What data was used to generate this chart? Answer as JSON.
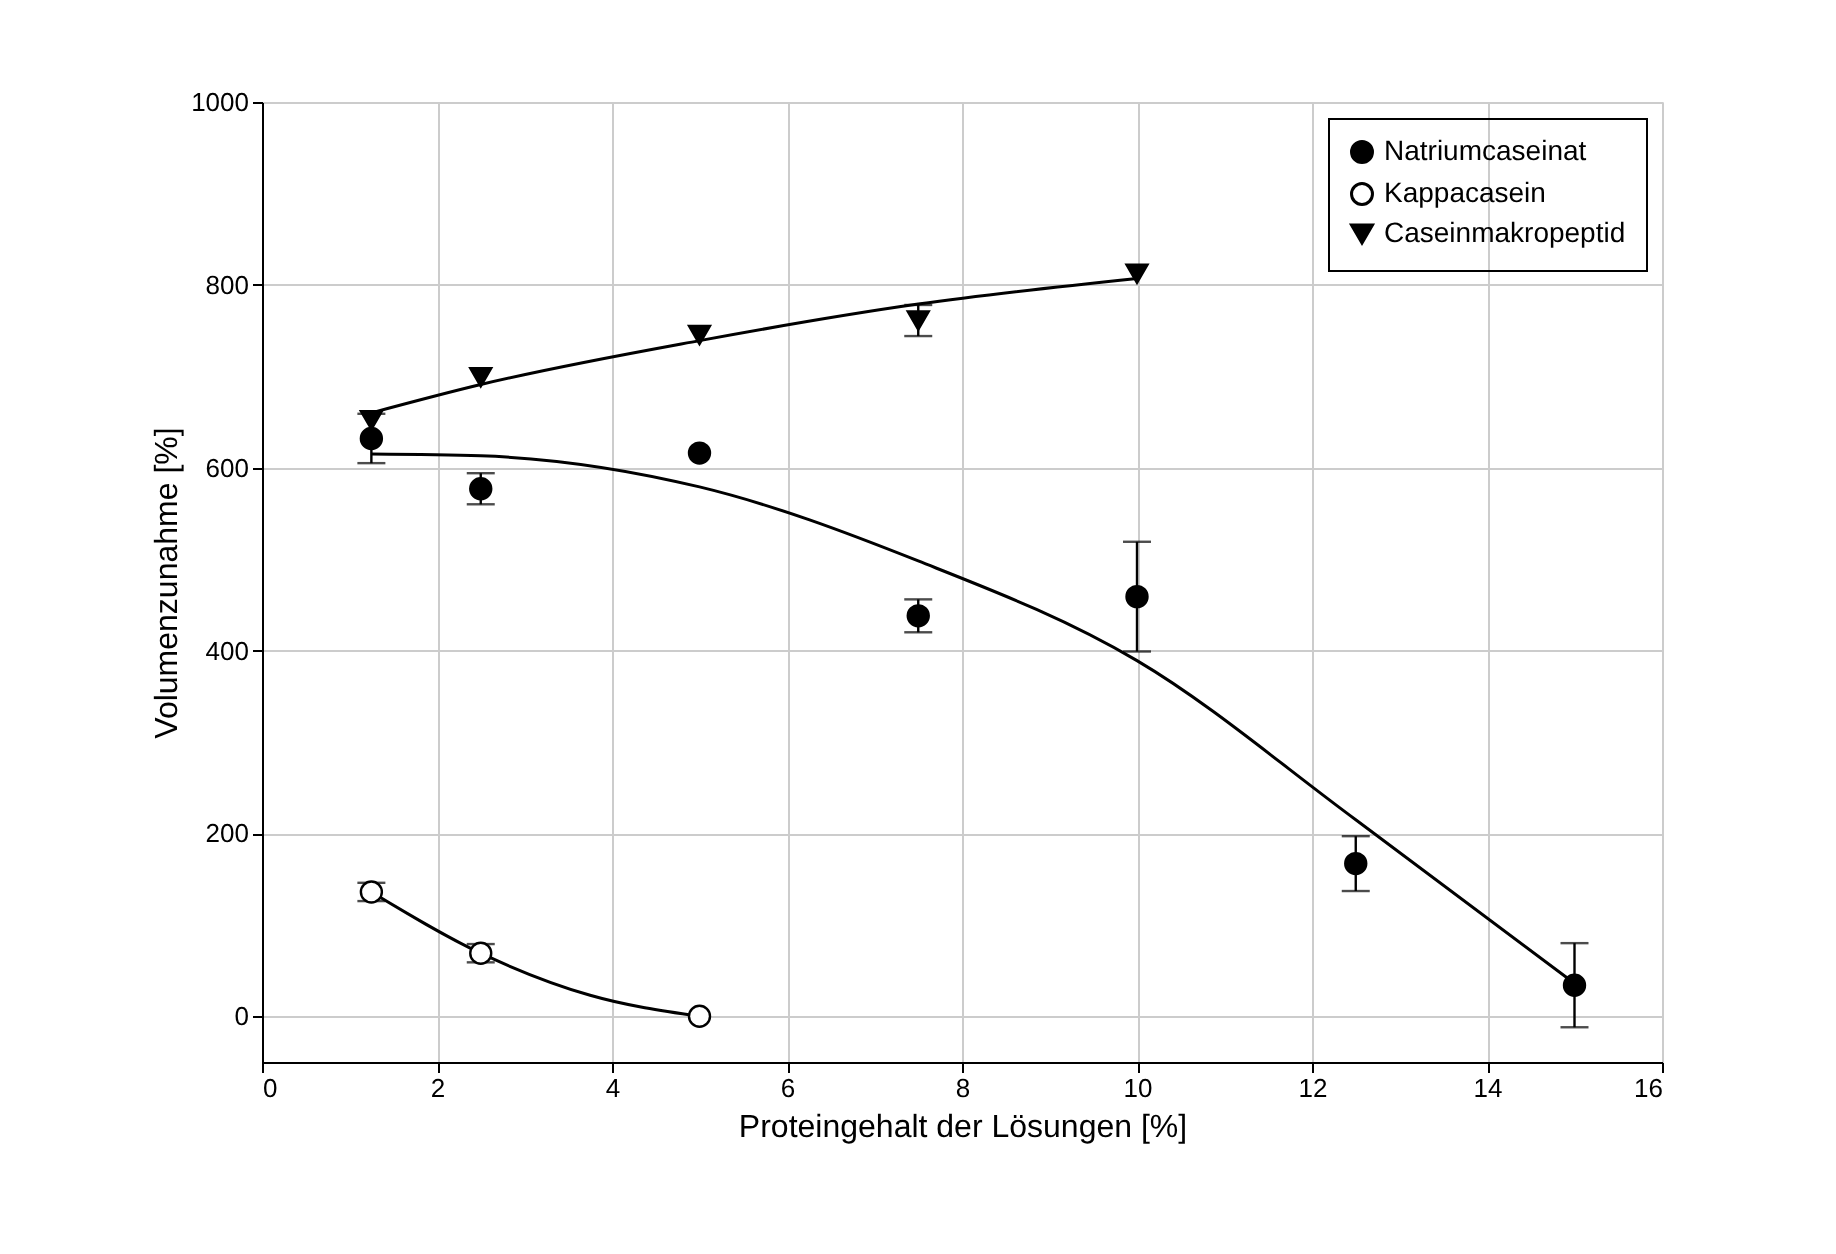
{
  "chart_data": {
    "type": "scatter",
    "xlabel": "Proteingehalt der Lösungen [%]",
    "ylabel": "Volumenzunahme [%]",
    "xlim": [
      0,
      16
    ],
    "xticks": [
      0,
      2,
      4,
      6,
      8,
      10,
      12,
      14,
      16
    ],
    "ylim": [
      -50,
      1000
    ],
    "yticks": [
      0,
      200,
      400,
      600,
      800,
      1000
    ],
    "grid": true,
    "legend": "top right",
    "series": [
      {
        "name": "Natriumcaseinat",
        "marker": "circle",
        "color": "#000000",
        "x": [
          1.25,
          2.5,
          5,
          7.5,
          10,
          12.5,
          15
        ],
        "values": [
          632,
          577,
          616,
          438,
          459,
          167,
          34
        ],
        "errors": [
          27,
          17,
          null,
          18,
          60,
          30,
          46
        ]
      },
      {
        "name": "Kappacasein",
        "marker": "circle",
        "color": "#ffffff",
        "x": [
          1.25,
          2.5,
          5
        ],
        "values": [
          136,
          69,
          0
        ],
        "errors": [
          10,
          10,
          null
        ]
      },
      {
        "name": "Caseinmakropeptid",
        "marker": "triangle-down",
        "color": "#000000",
        "x": [
          1.25,
          2.5,
          5,
          7.5,
          10
        ],
        "values": [
          652,
          699,
          745,
          761,
          812
        ],
        "errors": [
          null,
          null,
          null,
          17,
          null
        ]
      },
      {
        "type": "line",
        "color": "#000000",
        "x": [
          1.25,
          2.5,
          5,
          7.5,
          10,
          12.5,
          15
        ],
        "values": [
          615,
          613,
          579,
          498,
          389,
          215,
          36
        ]
      },
      {
        "type": "line",
        "color": "#000000",
        "x": [
          1.25,
          2.5,
          3.75,
          5
        ],
        "values": [
          136,
          69,
          23,
          0
        ]
      },
      {
        "type": "line",
        "color": "#000000",
        "x": [
          1.25,
          2.5,
          5,
          7.5,
          10
        ],
        "values": [
          660,
          691,
          739,
          779,
          807
        ]
      }
    ]
  }
}
